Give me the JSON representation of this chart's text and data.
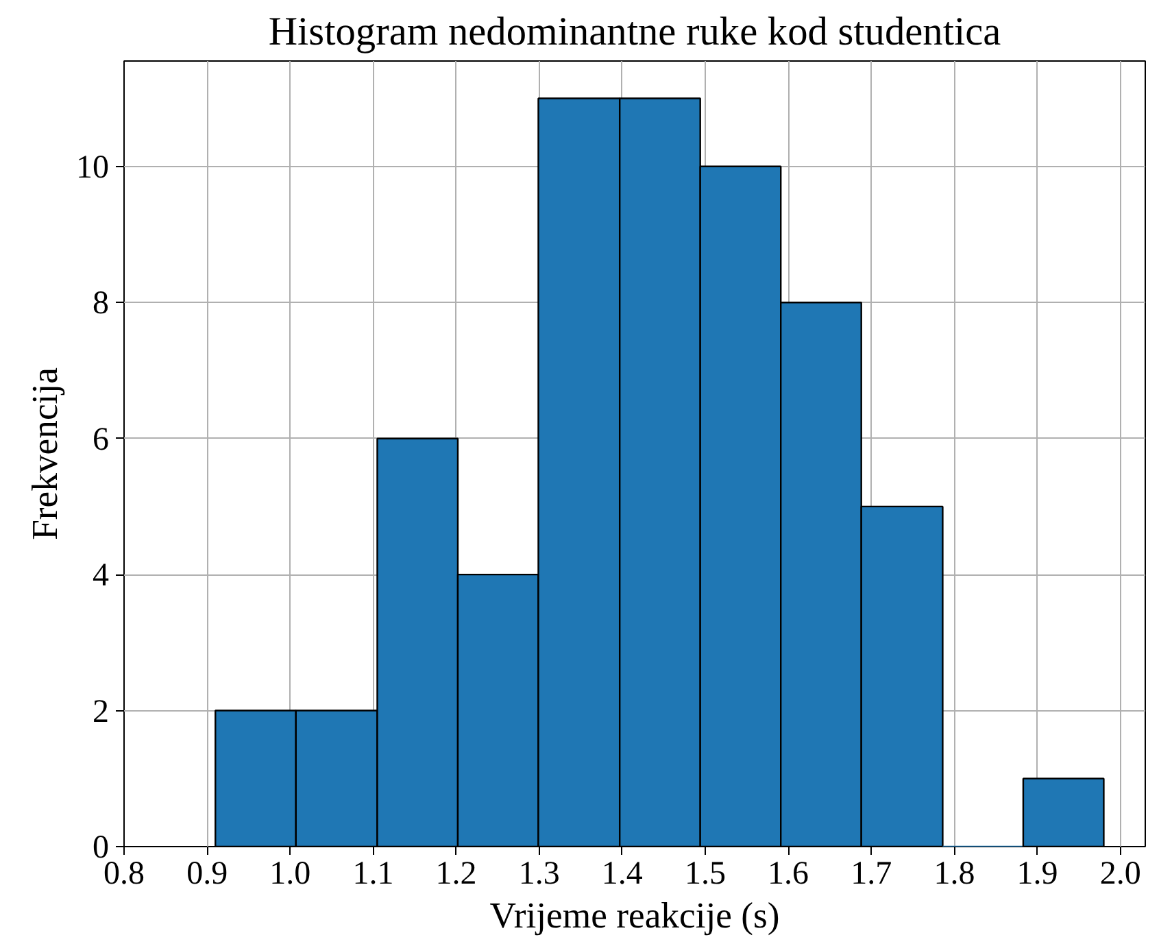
{
  "chart_data": {
    "type": "histogram",
    "title": "Histogram nedominantne ruke kod studentica",
    "xlabel": "Vrijeme reakcije (s)",
    "ylabel": "Frekvencija",
    "bins": [
      0.91,
      1.007,
      1.105,
      1.202,
      1.299,
      1.397,
      1.494,
      1.591,
      1.688,
      1.786,
      1.883,
      1.98
    ],
    "values": [
      2,
      2,
      6,
      4,
      11,
      11,
      10,
      8,
      5,
      0,
      1
    ],
    "color": "#1f77b4",
    "xlim": [
      0.8,
      2.03
    ],
    "ylim": [
      0,
      11.55
    ],
    "xticks": [
      {
        "value": 0.8,
        "label": "0.8"
      },
      {
        "value": 0.9,
        "label": "0.9"
      },
      {
        "value": 1.0,
        "label": "1.0"
      },
      {
        "value": 1.1,
        "label": "1.1"
      },
      {
        "value": 1.2,
        "label": "1.2"
      },
      {
        "value": 1.3,
        "label": "1.3"
      },
      {
        "value": 1.4,
        "label": "1.4"
      },
      {
        "value": 1.5,
        "label": "1.5"
      },
      {
        "value": 1.6,
        "label": "1.6"
      },
      {
        "value": 1.7,
        "label": "1.7"
      },
      {
        "value": 1.8,
        "label": "1.8"
      },
      {
        "value": 1.9,
        "label": "1.9"
      },
      {
        "value": 2.0,
        "label": "2.0"
      }
    ],
    "yticks": [
      0,
      2,
      4,
      6,
      8,
      10
    ],
    "grid": true
  }
}
